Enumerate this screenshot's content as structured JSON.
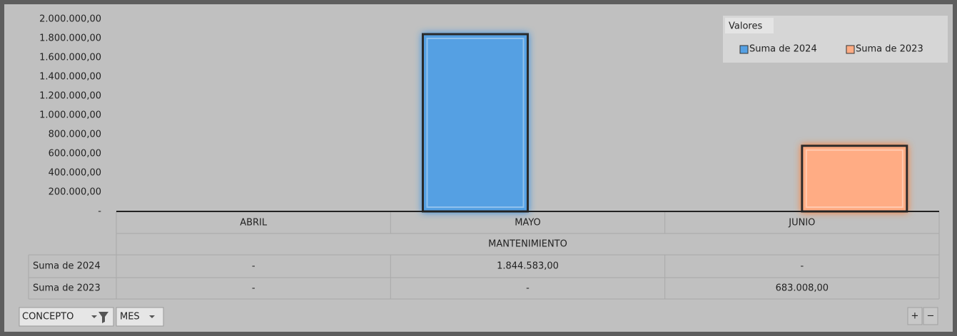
{
  "chart_data": {
    "type": "bar",
    "categories": [
      "ABRIL",
      "MAYO",
      "JUNIO"
    ],
    "group_label": "MANTENIMIENTO",
    "legend_title": "Valores",
    "legend": "top-right",
    "series": [
      {
        "name": "Suma de 2024",
        "color": "#55a0e3",
        "values": [
          null,
          1844583,
          null
        ],
        "value_labels": [
          "-",
          "1.844.583,00",
          "-"
        ]
      },
      {
        "name": "Suma de 2023",
        "color": "#ffac84",
        "values": [
          null,
          null,
          683008
        ],
        "value_labels": [
          "-",
          "-",
          "683.008,00"
        ]
      }
    ],
    "ylim": [
      0,
      2000000
    ],
    "yticks": [
      {
        "value": 0,
        "label": "-"
      },
      {
        "value": 200000,
        "label": "200.000,00"
      },
      {
        "value": 400000,
        "label": "400.000,00"
      },
      {
        "value": 600000,
        "label": "600.000,00"
      },
      {
        "value": 800000,
        "label": "800.000,00"
      },
      {
        "value": 1000000,
        "label": "1.000.000,00"
      },
      {
        "value": 1200000,
        "label": "1.200.000,00"
      },
      {
        "value": 1400000,
        "label": "1.400.000,00"
      },
      {
        "value": 1600000,
        "label": "1.600.000,00"
      },
      {
        "value": 1800000,
        "label": "1.800.000,00"
      },
      {
        "value": 2000000,
        "label": "2.000.000,00"
      }
    ]
  },
  "field_buttons": [
    "CONCEPTO",
    "MES"
  ],
  "zoom_buttons": [
    "+",
    "−"
  ]
}
